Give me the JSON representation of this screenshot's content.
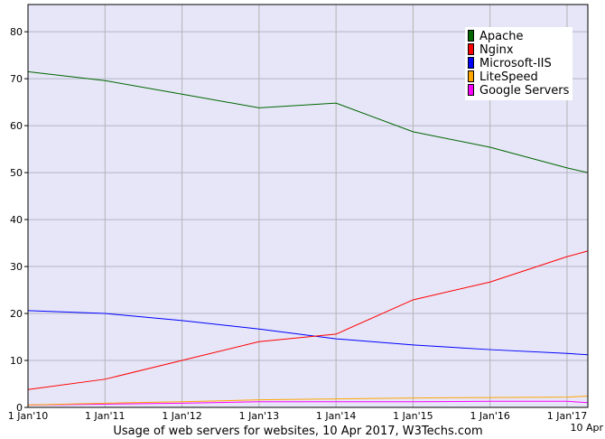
{
  "chart_data": {
    "type": "line",
    "title": "Usage of web servers for websites, 10 Apr 2017, W3Techs.com",
    "xlabel": "",
    "ylabel": "",
    "x": [
      "1 Jan'10",
      "1 Jan'11",
      "1 Jan'12",
      "1 Jan'13",
      "1 Jan'14",
      "1 Jan'15",
      "1 Jan'16",
      "1 Jan'17",
      "10 Apr"
    ],
    "x_years": [
      2010.0,
      2011.0,
      2012.0,
      2013.0,
      2014.0,
      2015.0,
      2016.0,
      2017.0,
      2017.27
    ],
    "ylim": [
      0,
      85.8
    ],
    "yticks": [
      0,
      10,
      20,
      30,
      40,
      50,
      60,
      70,
      80
    ],
    "grid": true,
    "legend_position": "top-right",
    "background": "#e6e6f8",
    "series": [
      {
        "name": "Apache",
        "color": "#006600",
        "values": [
          71.5,
          69.6,
          66.7,
          63.8,
          64.8,
          58.7,
          55.4,
          51.0,
          50.0
        ]
      },
      {
        "name": "Nginx",
        "color": "#ff0000",
        "values": [
          3.8,
          6.0,
          10.0,
          14.0,
          15.6,
          22.9,
          26.7,
          32.1,
          33.3
        ]
      },
      {
        "name": "Microsoft-IIS",
        "color": "#0000ff",
        "values": [
          20.6,
          20.0,
          18.5,
          16.7,
          14.6,
          13.3,
          12.3,
          11.5,
          11.2
        ]
      },
      {
        "name": "LiteSpeed",
        "color": "#ffa500",
        "values": [
          0.5,
          0.9,
          1.2,
          1.6,
          1.8,
          2.0,
          2.1,
          2.2,
          2.4
        ]
      },
      {
        "name": "Google Servers",
        "color": "#ff00ff",
        "values": [
          0.5,
          0.7,
          0.9,
          1.2,
          1.2,
          1.2,
          1.3,
          1.3,
          1.0
        ]
      }
    ]
  }
}
